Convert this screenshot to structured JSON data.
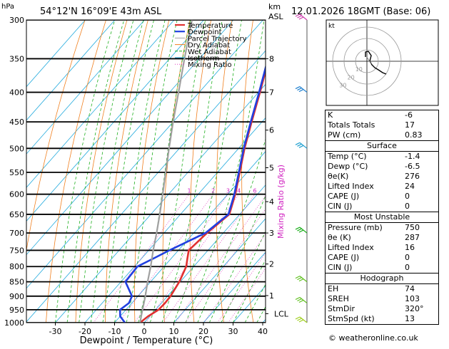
{
  "header": {
    "pressure_unit": "hPa",
    "location": "54°12'N  16°09'E  43m  ASL",
    "height_unit_km": "km",
    "height_unit_asl": "ASL",
    "datetime": "12.01.2026  18GMT  (Base: 06)"
  },
  "chart_data": {
    "type": "skew-t",
    "xlabel": "Dewpoint / Temperature (°C)",
    "ylabel": "hPa",
    "y_scale": "log-pressure",
    "ylim": [
      1000,
      300
    ],
    "xlim": [
      -35,
      40
    ],
    "x_ticks": [
      -30,
      -20,
      -10,
      0,
      10,
      20,
      30,
      40
    ],
    "x_tick_labels": [
      "-30",
      "-20",
      "-10",
      "0",
      "10",
      "20",
      "30",
      "40"
    ],
    "pressure_levels": [
      300,
      350,
      400,
      450,
      500,
      550,
      600,
      650,
      700,
      750,
      800,
      850,
      900,
      950,
      1000
    ],
    "pressure_tick_labels": [
      "300",
      "350",
      "400",
      "450",
      "500",
      "550",
      "600",
      "650",
      "700",
      "750",
      "800",
      "850",
      "900",
      "950",
      "1000"
    ],
    "km_ticks": [
      {
        "p": 350,
        "label": "8"
      },
      {
        "p": 400,
        "label": "7"
      },
      {
        "p": 465,
        "label": "6"
      },
      {
        "p": 540,
        "label": "5"
      },
      {
        "p": 618,
        "label": "4"
      },
      {
        "p": 700,
        "label": "3"
      },
      {
        "p": 792,
        "label": "2"
      },
      {
        "p": 898,
        "label": "1"
      },
      {
        "p": 965,
        "label": "LCL"
      }
    ],
    "legend": [
      "Temperature",
      "Dewpoint",
      "Parcel Trajectory",
      "Dry Adiabat",
      "Wet Adiabat",
      "Isotherm",
      "Mixing Ratio"
    ],
    "mixing_ratio_label": "Mixing Ratio (g/kg)",
    "mixing_ratio_values": [
      "1",
      "2",
      "3",
      "4",
      "6",
      "8",
      "10",
      "15",
      "20",
      "25"
    ],
    "series": [
      {
        "name": "Temperature",
        "color": "#e03030",
        "points": [
          [
            1000,
            -1.4
          ],
          [
            975,
            -0.6
          ],
          [
            950,
            1.0
          ],
          [
            925,
            1.2
          ],
          [
            900,
            1.0
          ],
          [
            850,
            -0.3
          ],
          [
            800,
            -2.5
          ],
          [
            775,
            -4.5
          ],
          [
            750,
            -6.5
          ],
          [
            700,
            -5.5
          ],
          [
            650,
            -3.5
          ],
          [
            600,
            -7.5
          ],
          [
            550,
            -12.5
          ],
          [
            500,
            -18
          ],
          [
            450,
            -23.5
          ],
          [
            400,
            -29.5
          ],
          [
            350,
            -36.5
          ],
          [
            300,
            -45
          ]
        ]
      },
      {
        "name": "Dewpoint",
        "color": "#2040e0",
        "points": [
          [
            1000,
            -6.5
          ],
          [
            975,
            -10
          ],
          [
            950,
            -12
          ],
          [
            925,
            -11
          ],
          [
            900,
            -12
          ],
          [
            850,
            -18.5
          ],
          [
            800,
            -19
          ],
          [
            775,
            -16
          ],
          [
            750,
            -13
          ],
          [
            700,
            -6
          ],
          [
            650,
            -3.8
          ],
          [
            600,
            -7.8
          ],
          [
            550,
            -12.8
          ],
          [
            500,
            -18.3
          ],
          [
            450,
            -23.8
          ],
          [
            400,
            -29.8
          ],
          [
            350,
            -36.8
          ],
          [
            300,
            -45.3
          ]
        ]
      },
      {
        "name": "Parcel Trajectory",
        "color": "#a0a0a0",
        "points": [
          [
            1000,
            -1.4
          ],
          [
            965,
            -3.5
          ],
          [
            900,
            -7.5
          ],
          [
            850,
            -11
          ],
          [
            800,
            -14.5
          ],
          [
            750,
            -18.5
          ],
          [
            700,
            -22.5
          ],
          [
            650,
            -27
          ],
          [
            600,
            -32
          ],
          [
            550,
            -37.5
          ],
          [
            500,
            -43.5
          ],
          [
            450,
            -50
          ],
          [
            400,
            -57
          ],
          [
            350,
            -65
          ],
          [
            300,
            -74
          ]
        ]
      }
    ],
    "wind_barbs": [
      {
        "p": 300,
        "color": "#d040b0"
      },
      {
        "p": 400,
        "color": "#2080d0"
      },
      {
        "p": 500,
        "color": "#20a0d0"
      },
      {
        "p": 700,
        "color": "#20b020"
      },
      {
        "p": 850,
        "color": "#60c020"
      },
      {
        "p": 925,
        "color": "#60c020"
      },
      {
        "p": 1000,
        "color": "#a0d020"
      }
    ]
  },
  "hodograph": {
    "unit": "kt",
    "ring_labels": [
      "10",
      "20",
      "30"
    ]
  },
  "indices": {
    "rows": [
      {
        "label": "K",
        "value": "-6"
      },
      {
        "label": "Totals Totals",
        "value": "17"
      },
      {
        "label": "PW (cm)",
        "value": "0.83"
      }
    ],
    "surface": {
      "title": "Surface",
      "rows": [
        {
          "label": "Temp (°C)",
          "value": "-1.4"
        },
        {
          "label": "Dewp (°C)",
          "value": "-6.5"
        },
        {
          "label": "θe(K)",
          "value": "276"
        },
        {
          "label": "Lifted Index",
          "value": "24"
        },
        {
          "label": "CAPE (J)",
          "value": "0"
        },
        {
          "label": "CIN (J)",
          "value": "0"
        }
      ]
    },
    "most_unstable": {
      "title": "Most Unstable",
      "rows": [
        {
          "label": "Pressure (mb)",
          "value": "750"
        },
        {
          "label": "θe (K)",
          "value": "287"
        },
        {
          "label": "Lifted Index",
          "value": "16"
        },
        {
          "label": "CAPE (J)",
          "value": "0"
        },
        {
          "label": "CIN (J)",
          "value": "0"
        }
      ]
    },
    "hodograph": {
      "title": "Hodograph",
      "rows": [
        {
          "label": "EH",
          "value": "74"
        },
        {
          "label": "SREH",
          "value": "103"
        },
        {
          "label": "StmDir",
          "value": "320°"
        },
        {
          "label": "StmSpd (kt)",
          "value": "13"
        }
      ]
    }
  },
  "credit": "© weatheronline.co.uk"
}
